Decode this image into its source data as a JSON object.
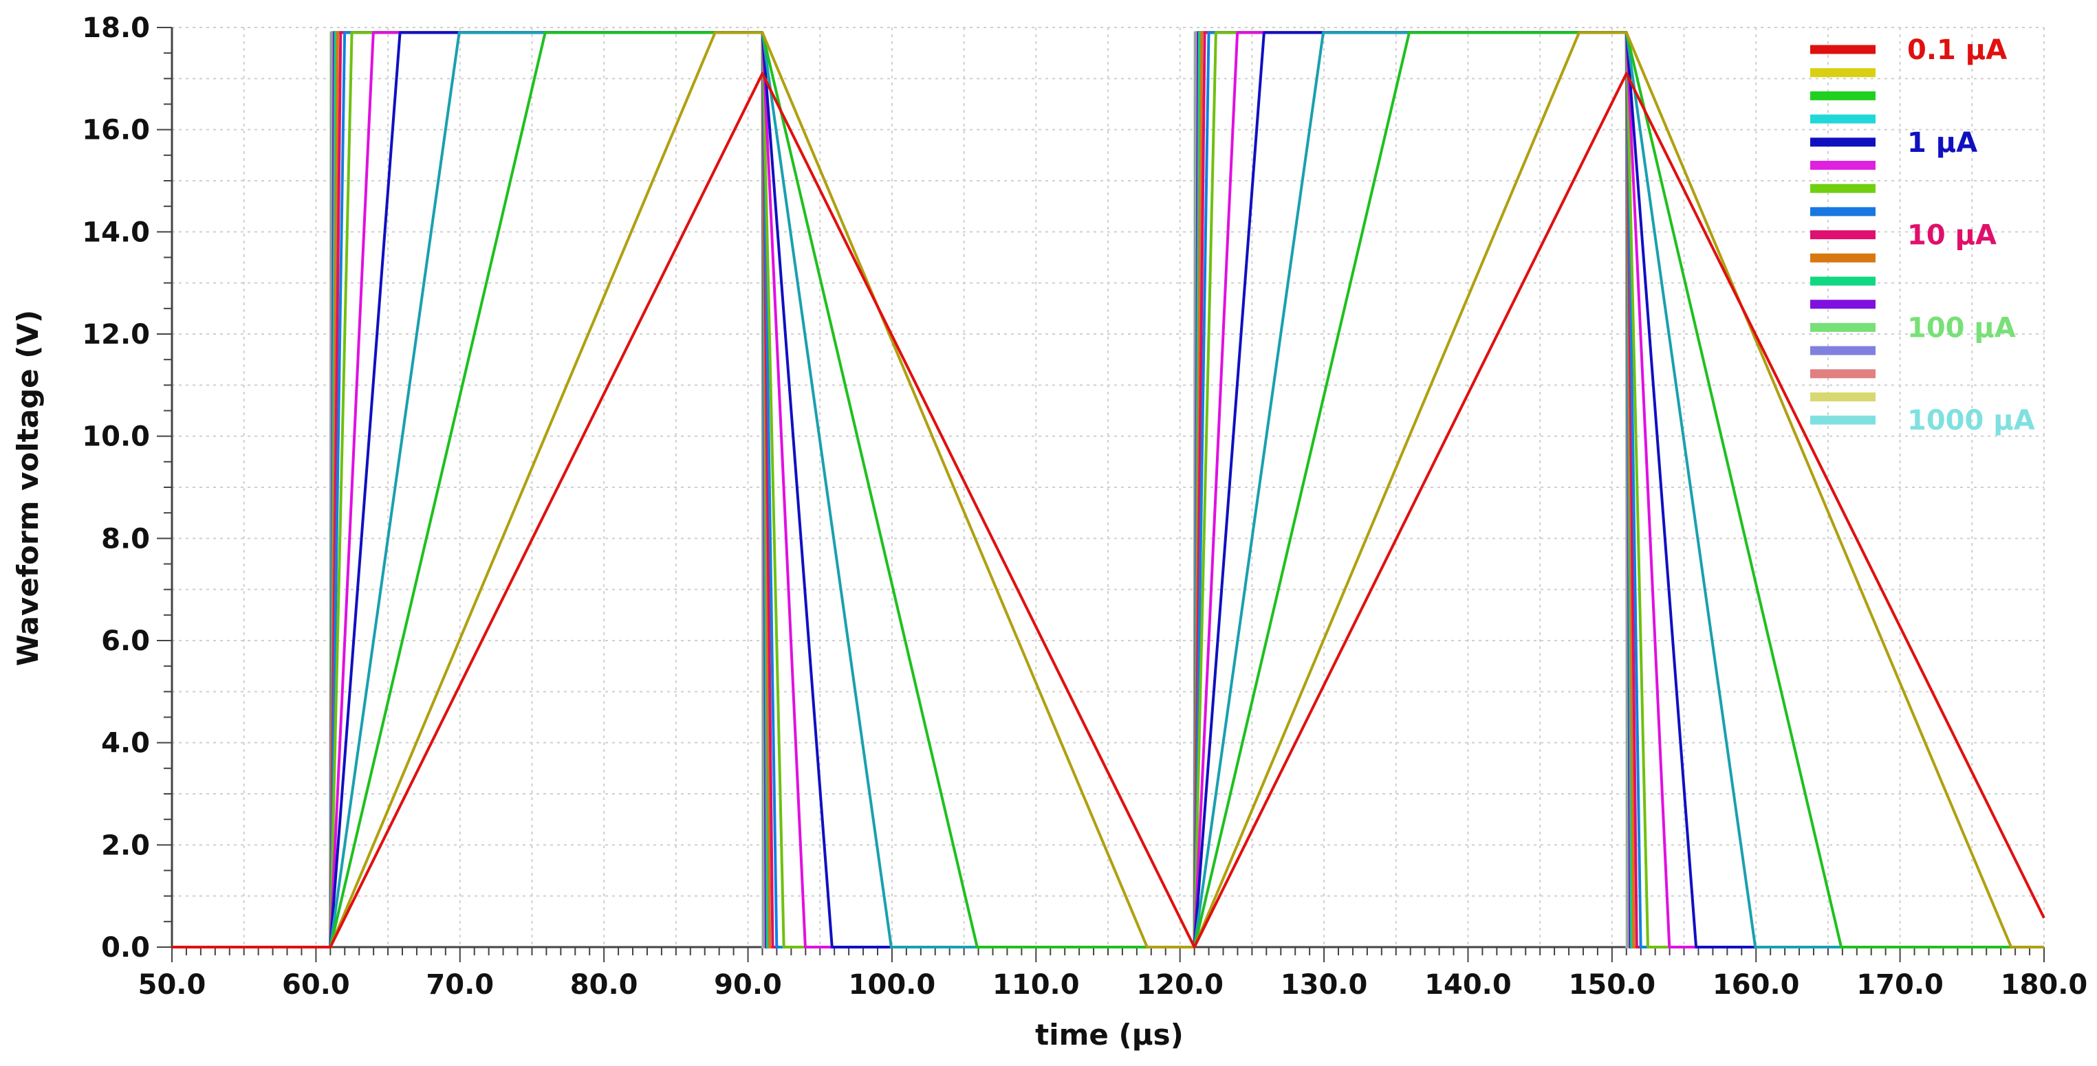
{
  "chart_data": {
    "type": "line",
    "title": "",
    "xlabel": "time (µs)",
    "ylabel": "Waveform voltage (V)",
    "xlim": [
      50,
      180
    ],
    "ylim": [
      0,
      18
    ],
    "grid": "on",
    "legend_position": "top-right",
    "x_ticks": [
      "50.0",
      "60.0",
      "70.0",
      "80.0",
      "90.0",
      "100.0",
      "110.0",
      "120.0",
      "130.0",
      "140.0",
      "150.0",
      "160.0",
      "170.0",
      "180.0"
    ],
    "y_ticks": [
      "0.0",
      "2.0",
      "4.0",
      "6.0",
      "8.0",
      "10.0",
      "12.0",
      "14.0",
      "16.0",
      "18.0"
    ],
    "clamp_voltage": 17.9,
    "periods": [
      {
        "rise_start": 61.0,
        "fall_start": 91.0
      },
      {
        "rise_start": 121.0,
        "fall_start": 151.0
      }
    ],
    "series": [
      {
        "name": "0.1 µA",
        "color": "#e01010",
        "slew_v_per_us": 0.57
      },
      {
        "name": "",
        "color": "#b0a010",
        "slew_v_per_us": 0.67
      },
      {
        "name": "",
        "color": "#20c020",
        "slew_v_per_us": 1.2
      },
      {
        "name": "",
        "color": "#1aa0b0",
        "slew_v_per_us": 2.0
      },
      {
        "name": "1 µA",
        "color": "#1010c0",
        "slew_v_per_us": 3.7
      },
      {
        "name": "",
        "color": "#e010e0",
        "slew_v_per_us": 6.0
      },
      {
        "name": "",
        "color": "#70c010",
        "slew_v_per_us": 12
      },
      {
        "name": "",
        "color": "#1080e0",
        "slew_v_per_us": 18
      },
      {
        "name": "10 µA",
        "color": "#e0106a",
        "slew_v_per_us": 25
      },
      {
        "name": "",
        "color": "#d87810",
        "slew_v_per_us": 35
      },
      {
        "name": "",
        "color": "#10d080",
        "slew_v_per_us": 50
      },
      {
        "name": "",
        "color": "#8010e0",
        "slew_v_per_us": 70
      },
      {
        "name": "100 µA",
        "color": "#78e078",
        "slew_v_per_us": 100
      },
      {
        "name": "",
        "color": "#8080e0",
        "slew_v_per_us": 150
      },
      {
        "name": "",
        "color": "#e08080",
        "slew_v_per_us": 200
      },
      {
        "name": "",
        "color": "#d8d870",
        "slew_v_per_us": 300
      },
      {
        "name": "1000 µA",
        "color": "#80e0e0",
        "slew_v_per_us": 500
      }
    ],
    "legend_swatch_colors": [
      "#e01010",
      "#d8d010",
      "#20d020",
      "#20d8d8",
      "#1010c0",
      "#e020e0",
      "#70d010",
      "#1878e0",
      "#e01070",
      "#d87810",
      "#10d880",
      "#8010e0",
      "#78e078",
      "#8080e0",
      "#e08080",
      "#d8d870",
      "#80e0e0"
    ],
    "legend_labels": [
      {
        "text": "0.1 µA",
        "color": "#e01010",
        "swatch_index": 0
      },
      {
        "text": "1 µA",
        "color": "#1010c0",
        "swatch_index": 4
      },
      {
        "text": "10 µA",
        "color": "#e0106a",
        "swatch_index": 8
      },
      {
        "text": "100 µA",
        "color": "#78e078",
        "swatch_index": 12
      },
      {
        "text": "1000 µA",
        "color": "#80e0e0",
        "swatch_index": 16
      }
    ]
  }
}
